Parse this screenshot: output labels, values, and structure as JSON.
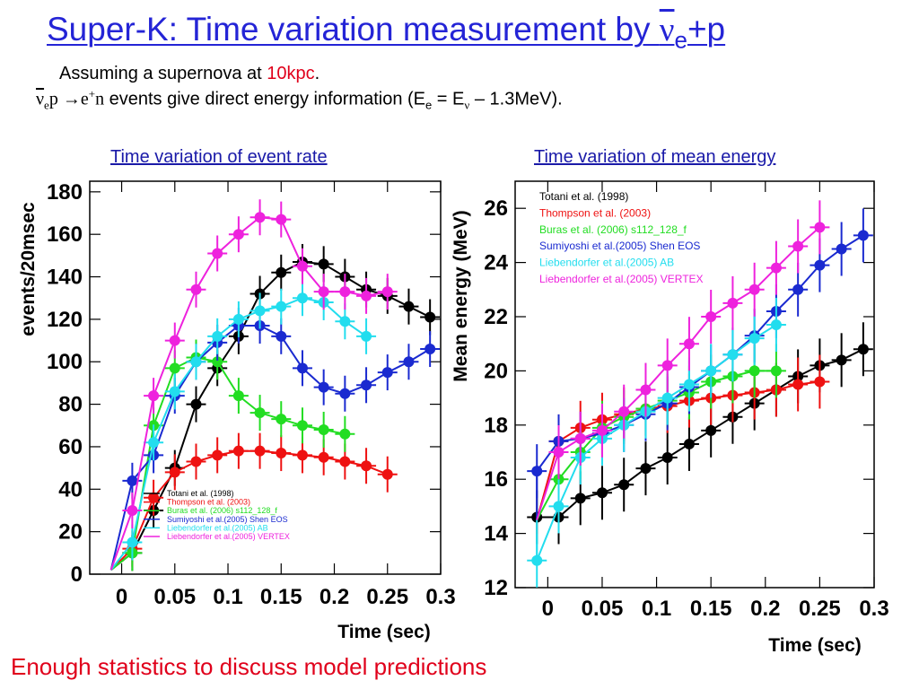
{
  "slide": {
    "title_main": "Super-K: Time variation measurement by ",
    "title_nu": "ν",
    "title_sub": "e",
    "title_tail": "+p",
    "line1_text": "Assuming a supernova at ",
    "line1_highlight": "10kpc",
    "line1_end": ".",
    "line2_nu": "ν",
    "line2_sub": "e",
    "line2_reaction": "p →e",
    "line2_plus": "+",
    "line2_n": "n",
    "line2_text": " events give direct energy information (E",
    "line2_e": "e",
    "line2_eq": " = E",
    "line2_nu2": "ν",
    "line2_end": " – 1.3MeV).",
    "caption_left": "Time variation of event rate",
    "caption_right": "Time variation of mean energy",
    "footer": "Enough statistics to discuss model predictions"
  },
  "colors": {
    "title": "#2424d6",
    "caption": "#1a1aa8",
    "accent_red": "#e0001b",
    "Totani": "#000000",
    "Thompson": "#ee1111",
    "Buras": "#22dd22",
    "Sumiyoshi": "#1a2ad0",
    "Liebendorfer_AB": "#22ddee",
    "Liebendorfer_VERTEX": "#ee22dd"
  },
  "chart_data": [
    {
      "type": "line",
      "xlabel": "Time (sec)",
      "ylabel": "events/20msec",
      "xlim": [
        -0.03,
        0.3
      ],
      "ylim": [
        0,
        185
      ],
      "xticks": [
        "0",
        "0.05",
        "0.1",
        "0.15",
        "0.2",
        "0.25",
        "0.3"
      ],
      "yticks": [
        "0",
        "20",
        "40",
        "60",
        "80",
        "100",
        "120",
        "140",
        "160",
        "180"
      ],
      "legend_position": "bottom-right",
      "series": [
        {
          "name": "Totani et al. (1998)",
          "color_key": "Totani",
          "x": [
            0.01,
            0.03,
            0.05,
            0.07,
            0.09,
            0.11,
            0.13,
            0.15,
            0.17,
            0.19,
            0.21,
            0.23,
            0.25,
            0.27,
            0.29
          ],
          "y": [
            10,
            30,
            50,
            80,
            97,
            112,
            132,
            142,
            147,
            146,
            140,
            134,
            131,
            126,
            121
          ]
        },
        {
          "name": "Thompson et al. (2003)",
          "color_key": "Thompson",
          "x": [
            0.01,
            0.03,
            0.05,
            0.07,
            0.09,
            0.11,
            0.13,
            0.15,
            0.17,
            0.19,
            0.21,
            0.23,
            0.25
          ],
          "y": [
            12,
            36,
            48,
            53,
            56,
            58,
            58,
            57,
            56,
            55,
            53,
            51,
            47
          ]
        },
        {
          "name": "Buras et al. (2006) s112_128_f",
          "color_key": "Buras",
          "x": [
            0.01,
            0.03,
            0.05,
            0.07,
            0.09,
            0.11,
            0.13,
            0.15,
            0.17,
            0.19,
            0.21
          ],
          "y": [
            10,
            70,
            97,
            102,
            100,
            84,
            76,
            73,
            70,
            68,
            66
          ]
        },
        {
          "name": "Sumiyoshi et al.(2005) Shen EOS",
          "color_key": "Sumiyoshi",
          "x": [
            0.01,
            0.03,
            0.05,
            0.07,
            0.09,
            0.11,
            0.13,
            0.15,
            0.17,
            0.19,
            0.21,
            0.23,
            0.25,
            0.27,
            0.29
          ],
          "y": [
            44,
            56,
            84,
            100,
            109,
            117,
            117,
            112,
            97,
            88,
            85,
            89,
            95,
            100,
            106
          ]
        },
        {
          "name": "Liebendorfer et al.(2005) AB",
          "color_key": "Liebendorfer_AB",
          "x": [
            0.01,
            0.03,
            0.05,
            0.07,
            0.09,
            0.11,
            0.13,
            0.15,
            0.17,
            0.19,
            0.21,
            0.23
          ],
          "y": [
            15,
            62,
            86,
            100,
            112,
            120,
            124,
            126,
            130,
            128,
            119,
            112
          ]
        },
        {
          "name": "Liebendorfer et al.(2005) VERTEX",
          "color_key": "Liebendorfer_VERTEX",
          "x": [
            0.01,
            0.03,
            0.05,
            0.07,
            0.09,
            0.11,
            0.13,
            0.15,
            0.17,
            0.19,
            0.21,
            0.23,
            0.25
          ],
          "y": [
            30,
            84,
            110,
            134,
            151,
            160,
            168,
            167,
            145,
            133,
            133,
            131,
            133
          ]
        }
      ]
    },
    {
      "type": "line",
      "xlabel": "Time (sec)",
      "ylabel": "Mean energy (MeV)",
      "xlim": [
        -0.03,
        0.3
      ],
      "ylim": [
        12,
        27
      ],
      "xticks": [
        "0",
        "0.05",
        "0.1",
        "0.15",
        "0.2",
        "0.25",
        "0.3"
      ],
      "yticks": [
        "12",
        "14",
        "16",
        "18",
        "20",
        "22",
        "24",
        "26"
      ],
      "legend_position": "top-left",
      "series": [
        {
          "name": "Totani et al. (1998)",
          "color_key": "Totani",
          "x": [
            -0.01,
            0.01,
            0.03,
            0.05,
            0.07,
            0.09,
            0.11,
            0.13,
            0.15,
            0.17,
            0.19,
            0.21,
            0.23,
            0.25,
            0.27,
            0.29
          ],
          "y": [
            14.6,
            14.6,
            15.3,
            15.5,
            15.8,
            16.4,
            16.8,
            17.3,
            17.8,
            18.3,
            18.8,
            19.3,
            19.8,
            20.2,
            20.4,
            20.8
          ]
        },
        {
          "name": "Thompson et al. (2003)",
          "color_key": "Thompson",
          "x": [
            0.01,
            0.03,
            0.05,
            0.07,
            0.09,
            0.11,
            0.13,
            0.15,
            0.17,
            0.19,
            0.21,
            0.23,
            0.25
          ],
          "y": [
            17.4,
            17.9,
            18.2,
            18.4,
            18.6,
            18.7,
            18.9,
            19.0,
            19.1,
            19.2,
            19.3,
            19.5,
            19.6
          ]
        },
        {
          "name": "Buras et al. (2006) s112_128_f",
          "color_key": "Buras",
          "x": [
            0.01,
            0.03,
            0.05,
            0.07,
            0.09,
            0.11,
            0.13,
            0.15,
            0.17,
            0.19,
            0.21
          ],
          "y": [
            16.0,
            17.0,
            17.9,
            18.3,
            18.6,
            18.9,
            19.2,
            19.6,
            19.8,
            20.0,
            20.0
          ]
        },
        {
          "name": "Sumiyoshi et al.(2005) Shen EOS",
          "color_key": "Sumiyoshi",
          "x": [
            -0.01,
            0.01,
            0.03,
            0.05,
            0.07,
            0.09,
            0.11,
            0.13,
            0.15,
            0.17,
            0.19,
            0.21,
            0.23,
            0.25,
            0.27,
            0.29
          ],
          "y": [
            16.3,
            17.4,
            17.5,
            17.7,
            18.0,
            18.4,
            18.8,
            19.4,
            20.0,
            20.6,
            21.3,
            22.2,
            23.0,
            23.9,
            24.5,
            25.0
          ]
        },
        {
          "name": "Liebendorfer et al.(2005) AB",
          "color_key": "Liebendorfer_AB",
          "x": [
            -0.01,
            0.01,
            0.03,
            0.05,
            0.07,
            0.09,
            0.11,
            0.13,
            0.15,
            0.17,
            0.19,
            0.21
          ],
          "y": [
            13.0,
            15.0,
            16.8,
            17.5,
            18.0,
            18.5,
            19.0,
            19.5,
            20.0,
            20.6,
            21.2,
            21.7
          ]
        },
        {
          "name": "Liebendorfer et al.(2005) VERTEX",
          "color_key": "Liebendorfer_VERTEX",
          "x": [
            0.01,
            0.03,
            0.05,
            0.07,
            0.09,
            0.11,
            0.13,
            0.15,
            0.17,
            0.19,
            0.21,
            0.23,
            0.25
          ],
          "y": [
            17.0,
            17.5,
            17.8,
            18.5,
            19.3,
            20.2,
            21.0,
            22.0,
            22.5,
            23.0,
            23.8,
            24.6,
            25.3
          ]
        }
      ]
    }
  ]
}
